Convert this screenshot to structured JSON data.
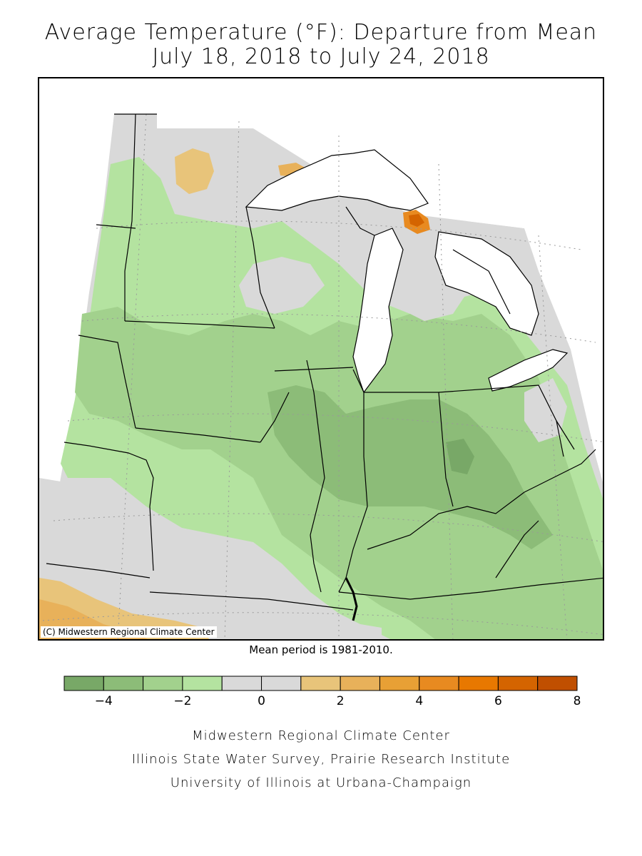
{
  "title_line1": "Average Temperature (°F): Departure from Mean",
  "title_line2": "July 18, 2018 to July 24, 2018",
  "copyright": "(C) Midwestern Regional Climate Center",
  "mean_period": "Mean period is 1981-2010.",
  "legend": {
    "bins": [
      {
        "from": -5,
        "to": -4,
        "color": "#78a867"
      },
      {
        "from": -4,
        "to": -3,
        "color": "#8cbc78"
      },
      {
        "from": -3,
        "to": -2,
        "color": "#a2d18d"
      },
      {
        "from": -2,
        "to": -1,
        "color": "#b4e3a0"
      },
      {
        "from": -1,
        "to": 0,
        "color": "#d9d9d9"
      },
      {
        "from": 0,
        "to": 1,
        "color": "#d9d9d9"
      },
      {
        "from": 1,
        "to": 2,
        "color": "#e8c47a"
      },
      {
        "from": 2,
        "to": 3,
        "color": "#e8b15a"
      },
      {
        "from": 3,
        "to": 4,
        "color": "#e8a035"
      },
      {
        "from": 4,
        "to": 5,
        "color": "#e88a20"
      },
      {
        "from": 5,
        "to": 6,
        "color": "#e87800"
      },
      {
        "from": 6,
        "to": 7,
        "color": "#d46400"
      },
      {
        "from": 7,
        "to": 8,
        "color": "#c04f00"
      }
    ],
    "tick_labels": [
      {
        "value": -4,
        "label": "−4"
      },
      {
        "value": -2,
        "label": "−2"
      },
      {
        "value": 0,
        "label": "0"
      },
      {
        "value": 2,
        "label": "2"
      },
      {
        "value": 4,
        "label": "4"
      },
      {
        "value": 6,
        "label": "6"
      },
      {
        "value": 8,
        "label": "8"
      }
    ]
  },
  "credits": {
    "line1": "Midwestern Regional Climate Center",
    "line2": "Illinois State Water Survey, Prairie Research Institute",
    "line3": "University of Illinois at Urbana-Champaign"
  },
  "colors": {
    "lake": "#ffffff",
    "border": "#000000",
    "grid": "#999999"
  }
}
